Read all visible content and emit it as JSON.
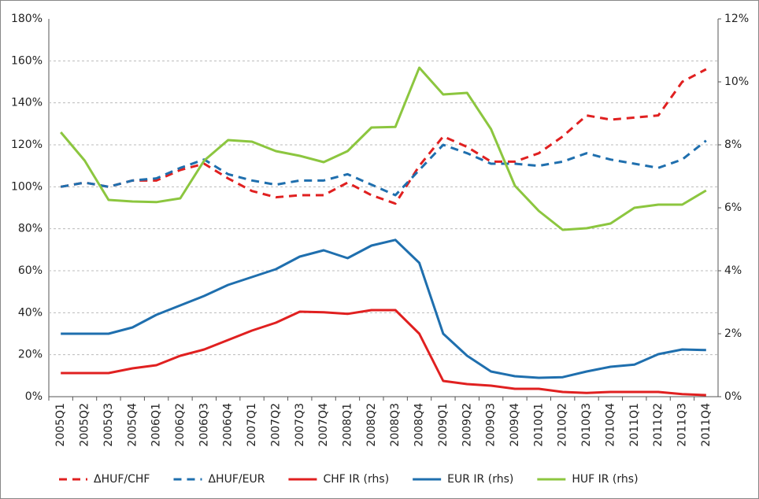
{
  "chart_data": {
    "type": "line",
    "categories": [
      "2005Q1",
      "2005Q2",
      "2005Q3",
      "2005Q4",
      "2006Q1",
      "2006Q2",
      "2006Q3",
      "2006Q4",
      "2007Q1",
      "2007Q2",
      "2007Q3",
      "2007Q4",
      "2008Q1",
      "2008Q2",
      "2008Q3",
      "2008Q4",
      "2009Q1",
      "2009Q2",
      "2009Q3",
      "2009Q4",
      "2010Q1",
      "2010Q2",
      "2010Q3",
      "2010Q4",
      "2011Q1",
      "2011Q2",
      "2011Q3",
      "2011Q4"
    ],
    "ylim": [
      0,
      180
    ],
    "yticks": [
      {
        "value": 0,
        "label": "0%"
      },
      {
        "value": 20,
        "label": "20%"
      },
      {
        "value": 40,
        "label": "40%"
      },
      {
        "value": 60,
        "label": "60%"
      },
      {
        "value": 80,
        "label": "80%"
      },
      {
        "value": 100,
        "label": "100%"
      },
      {
        "value": 120,
        "label": "120%"
      },
      {
        "value": 140,
        "label": "140%"
      },
      {
        "value": 160,
        "label": "160%"
      },
      {
        "value": 180,
        "label": "180%"
      }
    ],
    "y2lim": [
      0,
      12
    ],
    "y2ticks": [
      {
        "value": 0,
        "label": "0%"
      },
      {
        "value": 2,
        "label": "2%"
      },
      {
        "value": 4,
        "label": "4%"
      },
      {
        "value": 6,
        "label": "6%"
      },
      {
        "value": 8,
        "label": "8%"
      },
      {
        "value": 10,
        "label": "10%"
      },
      {
        "value": 12,
        "label": "12%"
      }
    ],
    "grid": true,
    "legend": "bottom",
    "series": [
      {
        "name": "ΔHUF/CHF",
        "color": "#e02020",
        "style": "dashed",
        "values": [
          100,
          102,
          100,
          103,
          103,
          108,
          111,
          104,
          98,
          95,
          96,
          96,
          102,
          96,
          92,
          110,
          124,
          119,
          112,
          112,
          116,
          124,
          134,
          132,
          133,
          134,
          150,
          156
        ]
      },
      {
        "name": "ΔHUF/EUR",
        "color": "#1f6fae",
        "style": "dashed",
        "values": [
          100,
          102,
          100,
          103,
          104,
          109,
          113,
          106,
          103,
          101,
          103,
          103,
          106,
          101,
          96,
          108,
          120,
          116,
          111,
          111,
          110,
          112,
          116,
          113,
          111,
          109,
          113,
          122
        ]
      },
      {
        "name": "CHF IR (rhs)",
        "color": "#e02020",
        "style": "solid",
        "axis": "y2",
        "values": [
          0.75,
          0.75,
          0.75,
          0.9,
          1.0,
          1.3,
          1.5,
          1.8,
          2.1,
          2.35,
          2.7,
          2.68,
          2.63,
          2.75,
          2.75,
          2.0,
          0.5,
          0.4,
          0.35,
          0.25,
          0.25,
          0.15,
          0.12,
          0.15,
          0.15,
          0.15,
          0.08,
          0.05
        ]
      },
      {
        "name": "EUR IR (rhs)",
        "color": "#1f6fae",
        "style": "solid",
        "axis": "y2",
        "values": [
          2.0,
          2.0,
          2.0,
          2.2,
          2.6,
          2.9,
          3.2,
          3.55,
          3.8,
          4.05,
          4.45,
          4.65,
          4.4,
          4.8,
          4.98,
          4.25,
          2.0,
          1.3,
          0.8,
          0.65,
          0.6,
          0.62,
          0.8,
          0.95,
          1.02,
          1.35,
          1.5,
          1.48
        ]
      },
      {
        "name": "HUF IR (rhs)",
        "color": "#8cc63f",
        "style": "solid",
        "axis": "y2",
        "values": [
          8.4,
          7.5,
          6.25,
          6.2,
          6.18,
          6.3,
          7.5,
          8.15,
          8.1,
          7.8,
          7.65,
          7.45,
          7.8,
          8.55,
          8.57,
          10.45,
          9.6,
          9.65,
          8.5,
          6.7,
          5.9,
          5.3,
          5.35,
          5.5,
          6.0,
          6.1,
          6.1,
          6.55
        ]
      }
    ]
  }
}
